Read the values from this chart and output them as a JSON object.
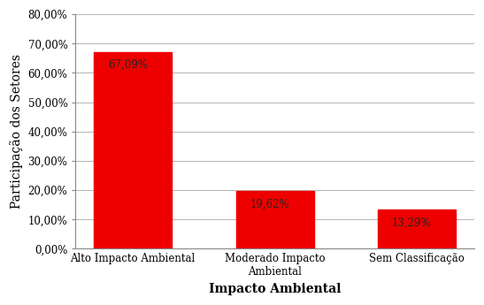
{
  "categories": [
    "Alto Impacto Ambiental",
    "Moderado Impacto\nAmbiental",
    "Sem Classificação"
  ],
  "values": [
    0.6709,
    0.1962,
    0.1329
  ],
  "bar_labels": [
    "67,09%",
    "19,62%",
    "13,29%"
  ],
  "bar_color": "#ee0000",
  "xlabel": "Impacto Ambiental",
  "ylabel": "Participação dos Setores",
  "ylim": [
    0,
    0.8
  ],
  "yticks": [
    0.0,
    0.1,
    0.2,
    0.3,
    0.4,
    0.5,
    0.6,
    0.7,
    0.8
  ],
  "ytick_labels": [
    "0,00%",
    "10,00%",
    "20,00%",
    "30,00%",
    "40,00%",
    "50,00%",
    "60,00%",
    "70,00%",
    "80,00%"
  ],
  "label_fontsize": 8.5,
  "axis_label_fontsize": 10,
  "bar_label_fontsize": 8.5,
  "background_color": "#ffffff",
  "grid_color": "#aaaaaa",
  "bar_label_color": "#222222",
  "bar_width": 0.55
}
